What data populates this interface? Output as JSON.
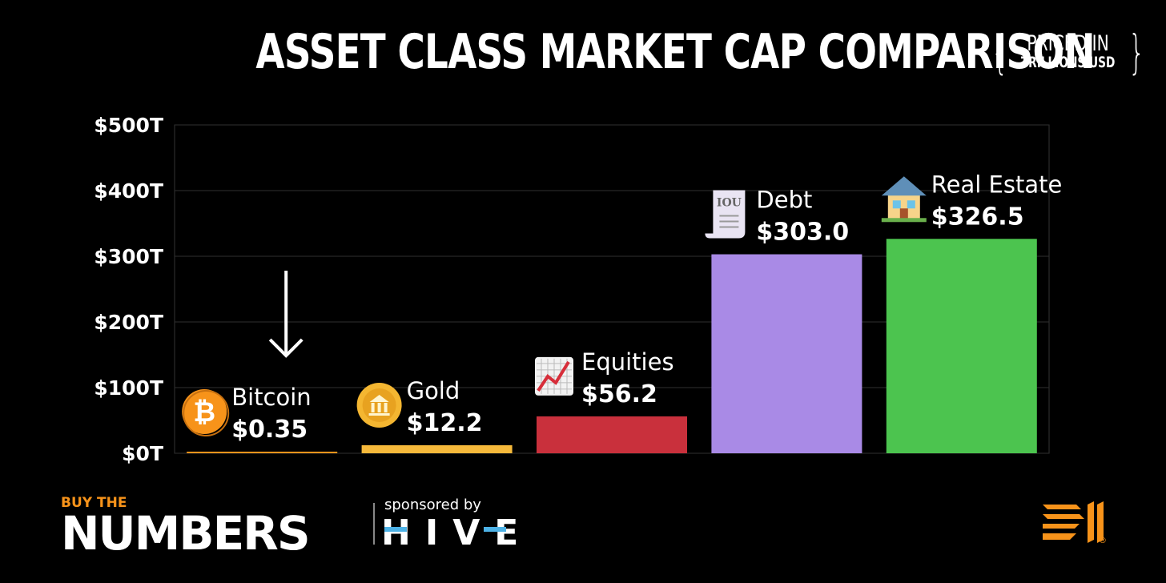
{
  "header": {
    "title": "ASSET CLASS MARKET CAP COMPARISON",
    "priced_in": "PRICED IN",
    "unit": "TRILLIONS USD"
  },
  "chart_data": {
    "type": "bar",
    "title": "ASSET CLASS MARKET CAP COMPARISON",
    "subtitle": "PRICED IN TRILLIONS USD",
    "categories": [
      "Bitcoin",
      "Gold",
      "Equities",
      "Debt",
      "Real Estate"
    ],
    "values": [
      0.35,
      12.2,
      56.2,
      303.0,
      326.5
    ],
    "value_labels": [
      "$0.35",
      "$12.2",
      "$56.2",
      "$303.0",
      "$326.5"
    ],
    "colors": [
      "#f7931a",
      "#f6b93b",
      "#c9303c",
      "#a98ae6",
      "#4cc44f"
    ],
    "icons": [
      "bitcoin-coin-icon",
      "gold-coin-icon",
      "chart-increasing-icon",
      "iou-receipt-icon",
      "house-icon"
    ],
    "ylim": [
      0,
      500
    ],
    "yticks": [
      0,
      100,
      200,
      300,
      400,
      500
    ],
    "ytick_labels": [
      "$0T",
      "$100T",
      "$200T",
      "$300T",
      "$400T",
      "$500T"
    ],
    "grid": true,
    "annotation": "down-arrow-over-bitcoin",
    "xlabel": "",
    "ylabel": ""
  },
  "footer": {
    "brand_top": "BUY THE",
    "brand_main": "NUMBERS",
    "sponsored_by": "sponsored by",
    "sponsor": "HIVE",
    "registered": "®"
  }
}
